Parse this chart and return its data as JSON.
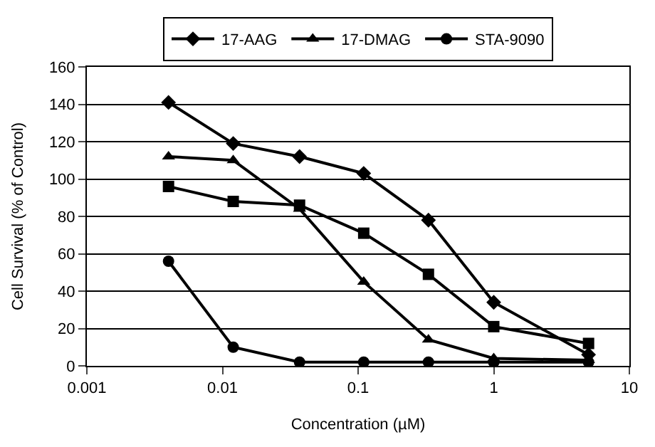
{
  "chart_data": {
    "type": "line",
    "xlabel": "Concentration (µM)",
    "ylabel": "Cell Survival (% of Control)",
    "log": "x",
    "x": [
      0.004,
      0.012,
      0.037,
      0.11,
      0.33,
      1,
      5
    ],
    "xlim": [
      0.001,
      10
    ],
    "xticks": [
      0.001,
      0.01,
      0.1,
      1,
      10
    ],
    "ylim": [
      0,
      160
    ],
    "yticks": [
      0,
      20,
      40,
      60,
      80,
      100,
      120,
      140,
      160
    ],
    "grid": "y",
    "legend": "top",
    "line_style": "solid",
    "series": [
      {
        "color": "#000000",
        "marker": "square",
        "values": [
          96,
          88,
          86,
          71,
          49,
          21,
          12
        ]
      },
      {
        "name": "17-AAG",
        "color": "#000000",
        "marker": "diamond",
        "values": [
          141,
          119,
          112,
          103,
          78,
          34,
          6
        ]
      },
      {
        "name": "17-DMAG",
        "color": "#000000",
        "marker": "triangle",
        "values": [
          112,
          110,
          84,
          45,
          14,
          4,
          3
        ]
      },
      {
        "name": "STA-9090",
        "color": "#000000",
        "marker": "circle",
        "values": [
          56,
          10,
          2,
          2,
          2,
          2,
          2
        ]
      }
    ]
  }
}
